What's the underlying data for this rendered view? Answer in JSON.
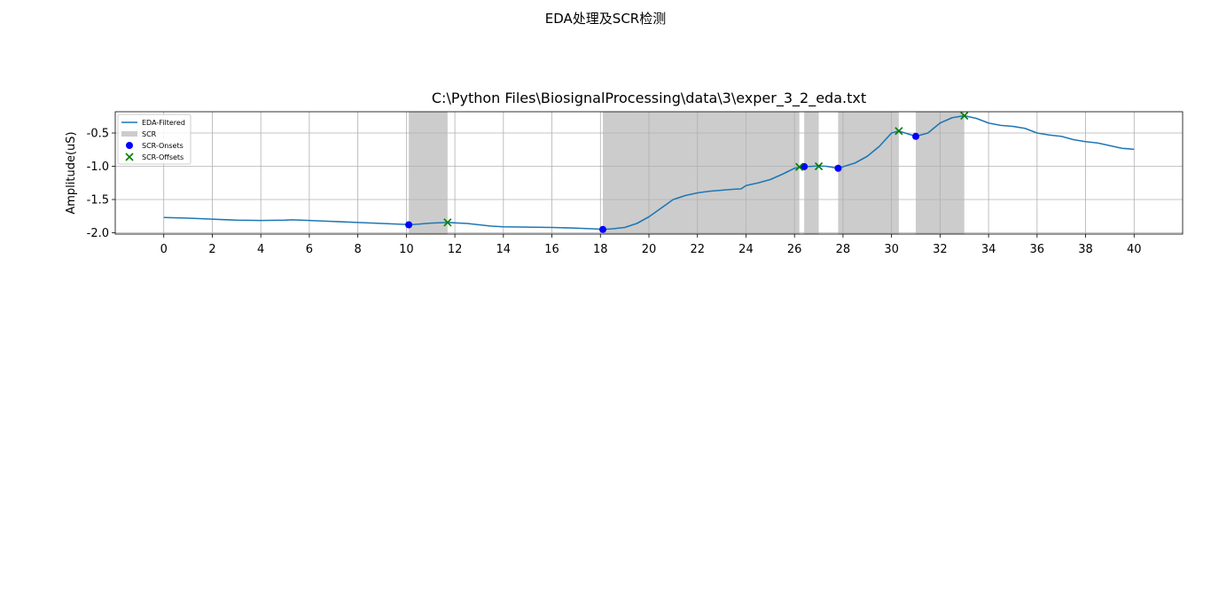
{
  "figure_title": "EDA处理及SCR检测",
  "chart_data": {
    "type": "line",
    "title": "C:\\Python Files\\BiosignalProcessing\\data\\3\\exper_3_2_eda.txt",
    "xlabel": "",
    "ylabel": "Amplitude(uS)",
    "xlim": [
      -2,
      42
    ],
    "ylim": [
      -2.02,
      -0.18
    ],
    "xticks": [
      0,
      2,
      4,
      6,
      8,
      10,
      12,
      14,
      16,
      18,
      20,
      22,
      24,
      26,
      28,
      30,
      32,
      34,
      36,
      38,
      40
    ],
    "yticks": [
      -2.0,
      -1.5,
      -1.0,
      -0.5
    ],
    "ytick_labels": [
      "-2.0",
      "-1.5",
      "-1.0",
      "-0.5"
    ],
    "grid": true,
    "legend_position": "top-left",
    "legend": [
      "EDA-Filtered",
      "SCR",
      "SCR-Onsets",
      "SCR-Offsets"
    ],
    "colors": {
      "line": "#1f77b4",
      "scr": "#cccccc",
      "onset": "#0000ff",
      "offset": "#008000"
    },
    "series": [
      {
        "name": "EDA-Filtered",
        "x": [
          0,
          1,
          2,
          3,
          4,
          5,
          5.3,
          6,
          7,
          8,
          9,
          10,
          10.1,
          10.5,
          11,
          11.7,
          12.5,
          13,
          13.5,
          14,
          15,
          16,
          17,
          18,
          18.1,
          18.5,
          19,
          19.5,
          20,
          20.5,
          21,
          21.5,
          22,
          22.5,
          23,
          23.5,
          23.8,
          24,
          24.5,
          25,
          25.5,
          26,
          26.3,
          26.5,
          27,
          27.3,
          27.8,
          28.5,
          29,
          29.5,
          30,
          30.3,
          31,
          31.5,
          32,
          32.5,
          33,
          33.5,
          34,
          34.5,
          35,
          35.5,
          36,
          36.5,
          37,
          37.5,
          38,
          38.5,
          39,
          39.5,
          40
        ],
        "y": [
          -1.77,
          -1.78,
          -1.795,
          -1.81,
          -1.815,
          -1.81,
          -1.805,
          -1.815,
          -1.83,
          -1.845,
          -1.86,
          -1.875,
          -1.88,
          -1.87,
          -1.855,
          -1.845,
          -1.86,
          -1.88,
          -1.9,
          -1.91,
          -1.915,
          -1.92,
          -1.93,
          -1.945,
          -1.95,
          -1.94,
          -1.92,
          -1.86,
          -1.76,
          -1.63,
          -1.5,
          -1.44,
          -1.4,
          -1.375,
          -1.36,
          -1.345,
          -1.34,
          -1.29,
          -1.25,
          -1.2,
          -1.12,
          -1.03,
          -1.01,
          -1.005,
          -0.995,
          -1.0,
          -1.03,
          -0.95,
          -0.85,
          -0.7,
          -0.5,
          -0.47,
          -0.55,
          -0.5,
          -0.35,
          -0.27,
          -0.24,
          -0.28,
          -0.35,
          -0.385,
          -0.4,
          -0.43,
          -0.5,
          -0.53,
          -0.55,
          -0.6,
          -0.63,
          -0.65,
          -0.69,
          -0.73,
          -0.745
        ]
      }
    ],
    "scr_regions": [
      [
        10.1,
        11.7
      ],
      [
        18.1,
        26.2
      ],
      [
        26.4,
        27.0
      ],
      [
        27.8,
        30.3
      ],
      [
        31.0,
        33.0
      ]
    ],
    "scr_onsets": {
      "x": [
        10.1,
        18.1,
        26.4,
        27.8,
        31.0
      ],
      "y": [
        -1.88,
        -1.95,
        -1.005,
        -1.03,
        -0.55
      ]
    },
    "scr_offsets": {
      "x": [
        11.7,
        26.2,
        27.0,
        30.3,
        33.0
      ],
      "y": [
        -1.845,
        -1.01,
        -1.0,
        -0.47,
        -0.24
      ]
    }
  }
}
